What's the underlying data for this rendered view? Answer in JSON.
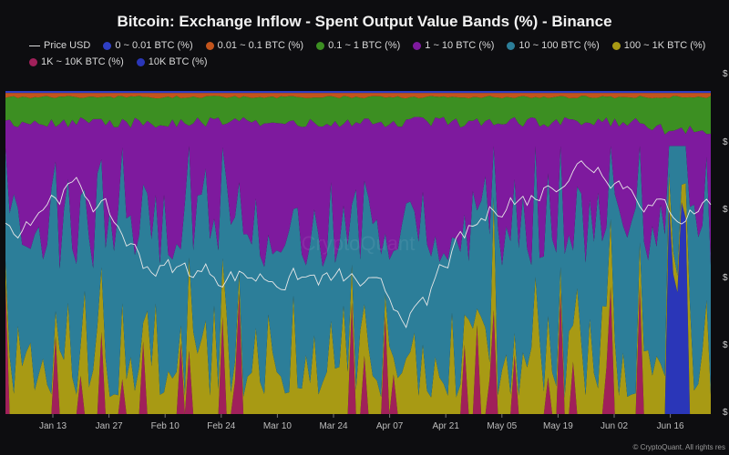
{
  "chart_data": {
    "type": "area",
    "stacked": true,
    "normalized_percent": true,
    "title": "Bitcoin: Exchange Inflow - Spent Output Value Bands (%) - Binance",
    "x_ticks": [
      "Jan 13",
      "Jan 27",
      "Feb 10",
      "Feb 24",
      "Mar 10",
      "Mar 24",
      "Apr 07",
      "Apr 21",
      "May 05",
      "May 19",
      "Jun 02",
      "Jun 16"
    ],
    "right_axis_labels": [
      "$",
      "$",
      "$",
      "$",
      "$",
      "$"
    ],
    "band_order_bottom_to_top": [
      "10K BTC (%)",
      "1K ~ 10K BTC (%)",
      "100 ~ 1K BTC (%)",
      "10 ~ 100 BTC (%)",
      "1 ~ 10 BTC (%)",
      "0.1 ~ 1 BTC (%)",
      "0.01 ~ 0.1 BTC (%)",
      "0 ~ 0.01 BTC (%)"
    ],
    "series": [
      {
        "name": "Price USD",
        "color": "#dcdcdc",
        "kind": "line"
      },
      {
        "name": "0 ~ 0.01 BTC (%)",
        "color": "#2f3fc4",
        "kind": "area"
      },
      {
        "name": "0.01 ~ 0.1 BTC (%)",
        "color": "#c2541c",
        "kind": "area"
      },
      {
        "name": "0.1 ~ 1 BTC (%)",
        "color": "#3c8f22",
        "kind": "area"
      },
      {
        "name": "1 ~ 10 BTC (%)",
        "color": "#7e1a9e",
        "kind": "area"
      },
      {
        "name": "10 ~ 100 BTC (%)",
        "color": "#2c7e99",
        "kind": "area"
      },
      {
        "name": "100 ~ 1K BTC (%)",
        "color": "#a89a14",
        "kind": "area"
      },
      {
        "name": "1K ~ 10K BTC (%)",
        "color": "#a0205a",
        "kind": "area"
      },
      {
        "name": "10K BTC (%)",
        "color": "#2a36b8",
        "kind": "area"
      }
    ],
    "watermark": "CryptoQuant",
    "grid": true,
    "legend_placement": "top-left"
  },
  "footer": "© CryptoQuant. All rights res"
}
